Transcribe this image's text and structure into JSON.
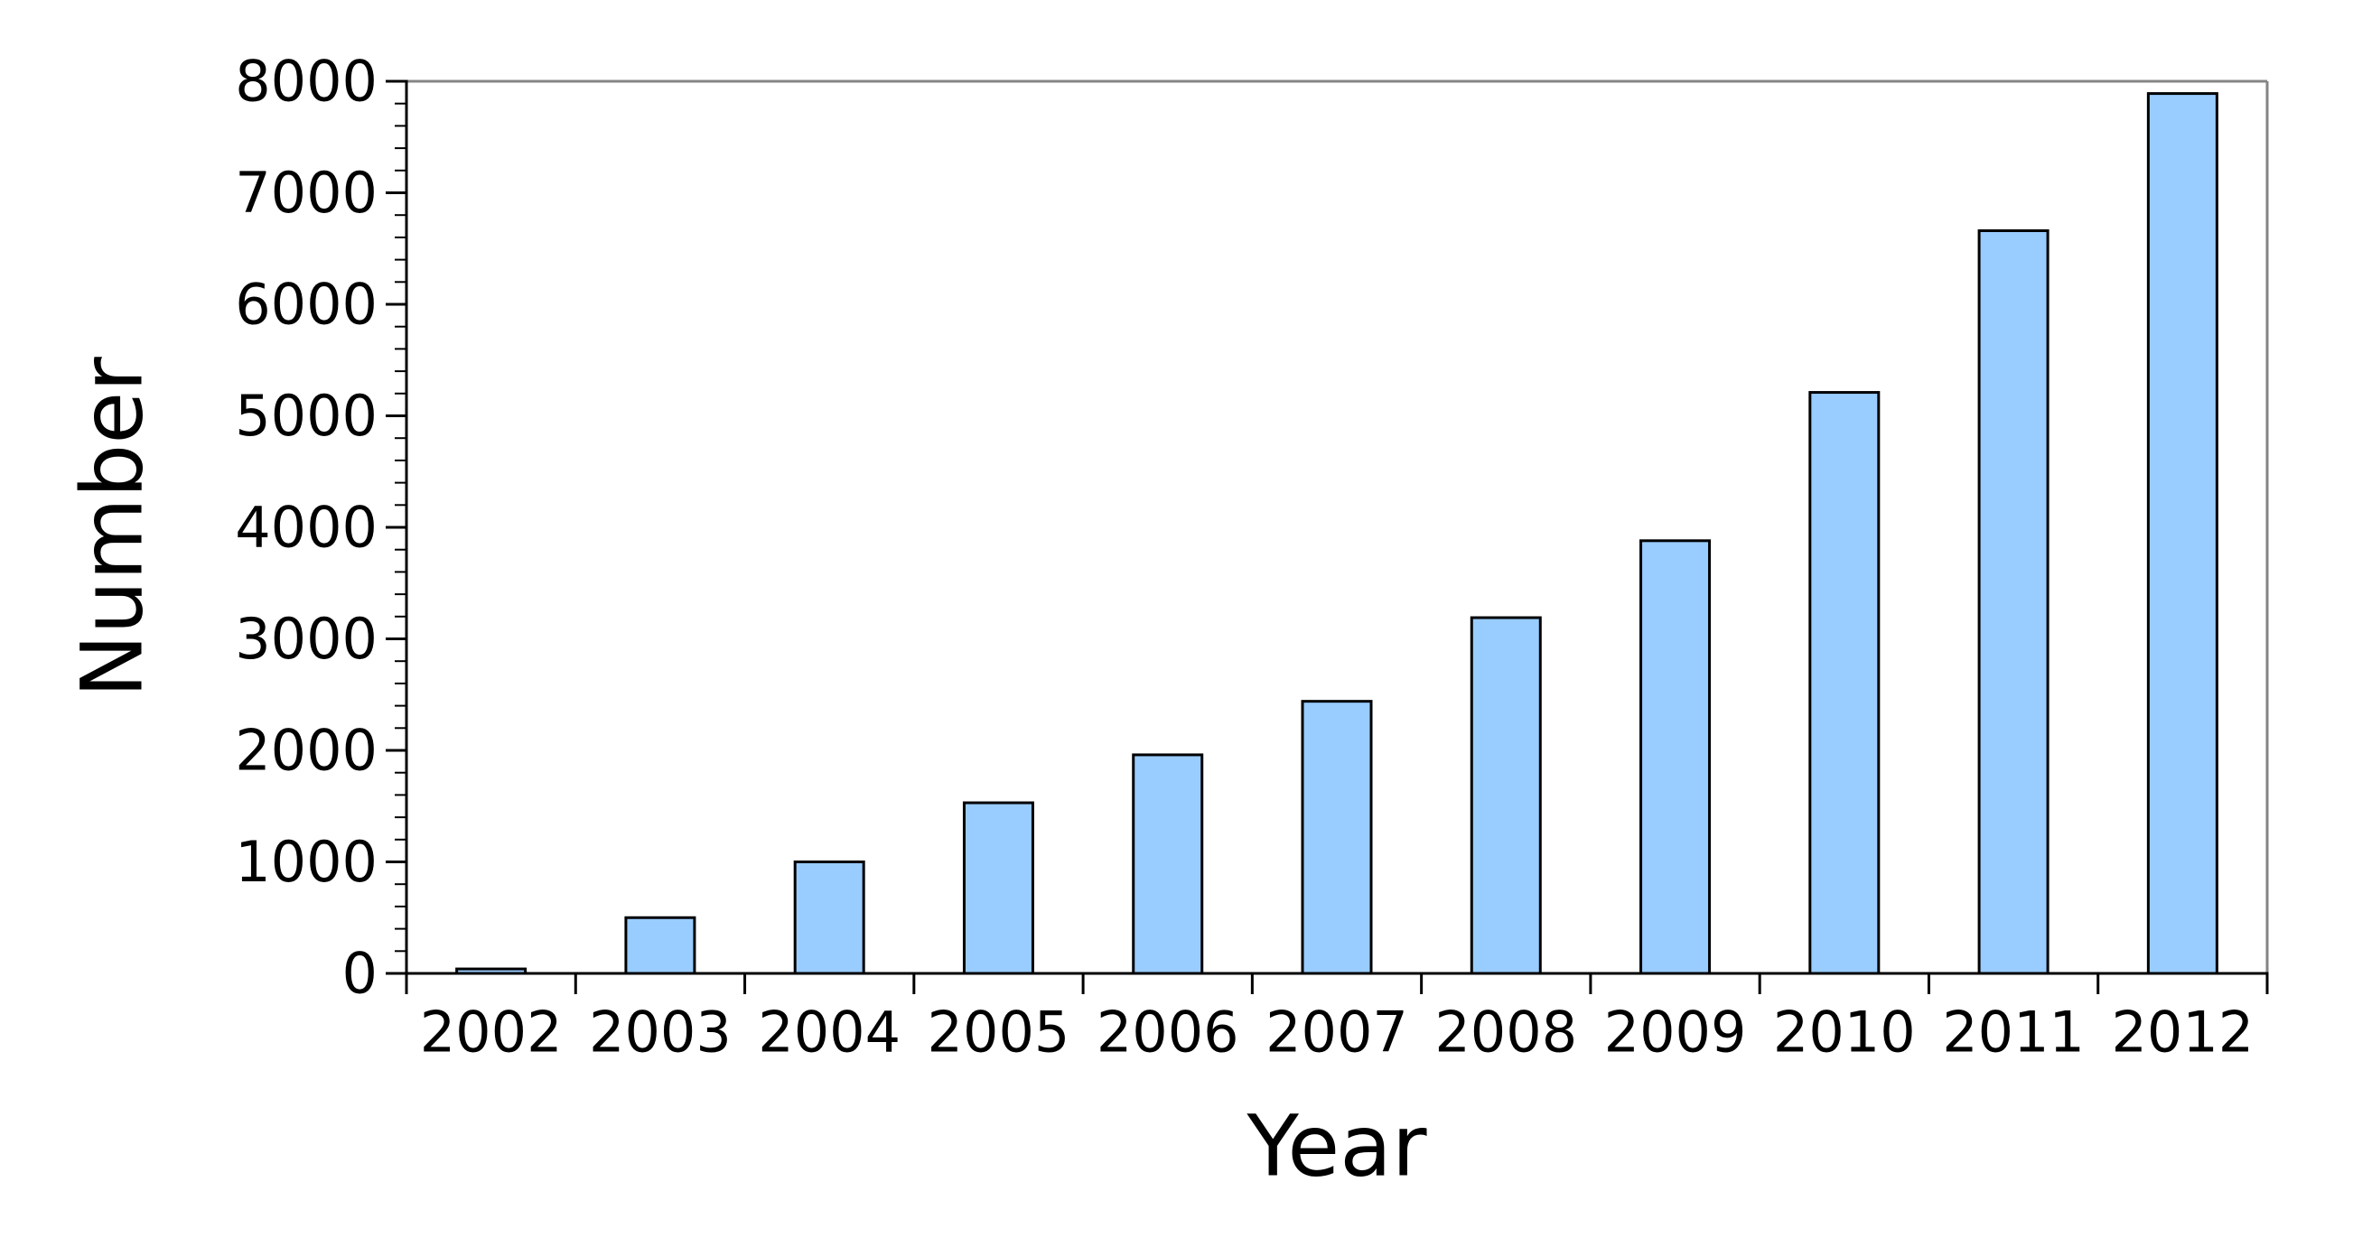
{
  "figure": {
    "background": "#ffffff"
  },
  "chart_data": {
    "type": "bar",
    "title": "",
    "xlabel": "Year",
    "ylabel": "Number",
    "categories": [
      "2002",
      "2003",
      "2004",
      "2005",
      "2006",
      "2007",
      "2008",
      "2009",
      "2010",
      "2011",
      "2012"
    ],
    "values": [
      40,
      500,
      1000,
      1530,
      1960,
      2440,
      3190,
      3880,
      5210,
      6660,
      7890
    ],
    "ylim": [
      0,
      8000
    ],
    "ytick_step": 1000,
    "ytick_labels": [
      "0",
      "1000",
      "2000",
      "3000",
      "4000",
      "5000",
      "6000",
      "7000",
      "8000"
    ],
    "y_minor_step": 200,
    "grid": false,
    "legend": null,
    "colors": {
      "bar_fill": "#99ccff",
      "bar_edge": "#000000",
      "axis_black": "#000000",
      "spine_gray": "#848484",
      "background": "#ffffff"
    }
  }
}
